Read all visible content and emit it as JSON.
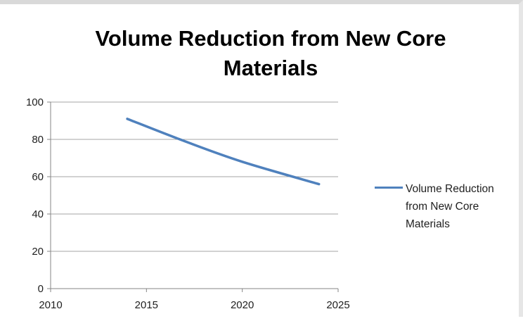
{
  "chart_data": {
    "type": "line",
    "title": "Volume Reduction from New Core Materials",
    "xlabel": "",
    "ylabel": "",
    "xlim": [
      2010,
      2025
    ],
    "ylim": [
      0,
      100
    ],
    "x_ticks": [
      2010,
      2015,
      2020,
      2025
    ],
    "y_ticks": [
      0,
      20,
      40,
      60,
      80,
      100
    ],
    "grid": "horizontal",
    "legend_position": "right",
    "series": [
      {
        "name": "Volume Reduction from New Core Materials",
        "color": "#4f81bd",
        "points": [
          {
            "x": 2014,
            "y": 91
          },
          {
            "x": 2017,
            "y": 79
          },
          {
            "x": 2020,
            "y": 68
          },
          {
            "x": 2024,
            "y": 56
          }
        ]
      }
    ]
  }
}
